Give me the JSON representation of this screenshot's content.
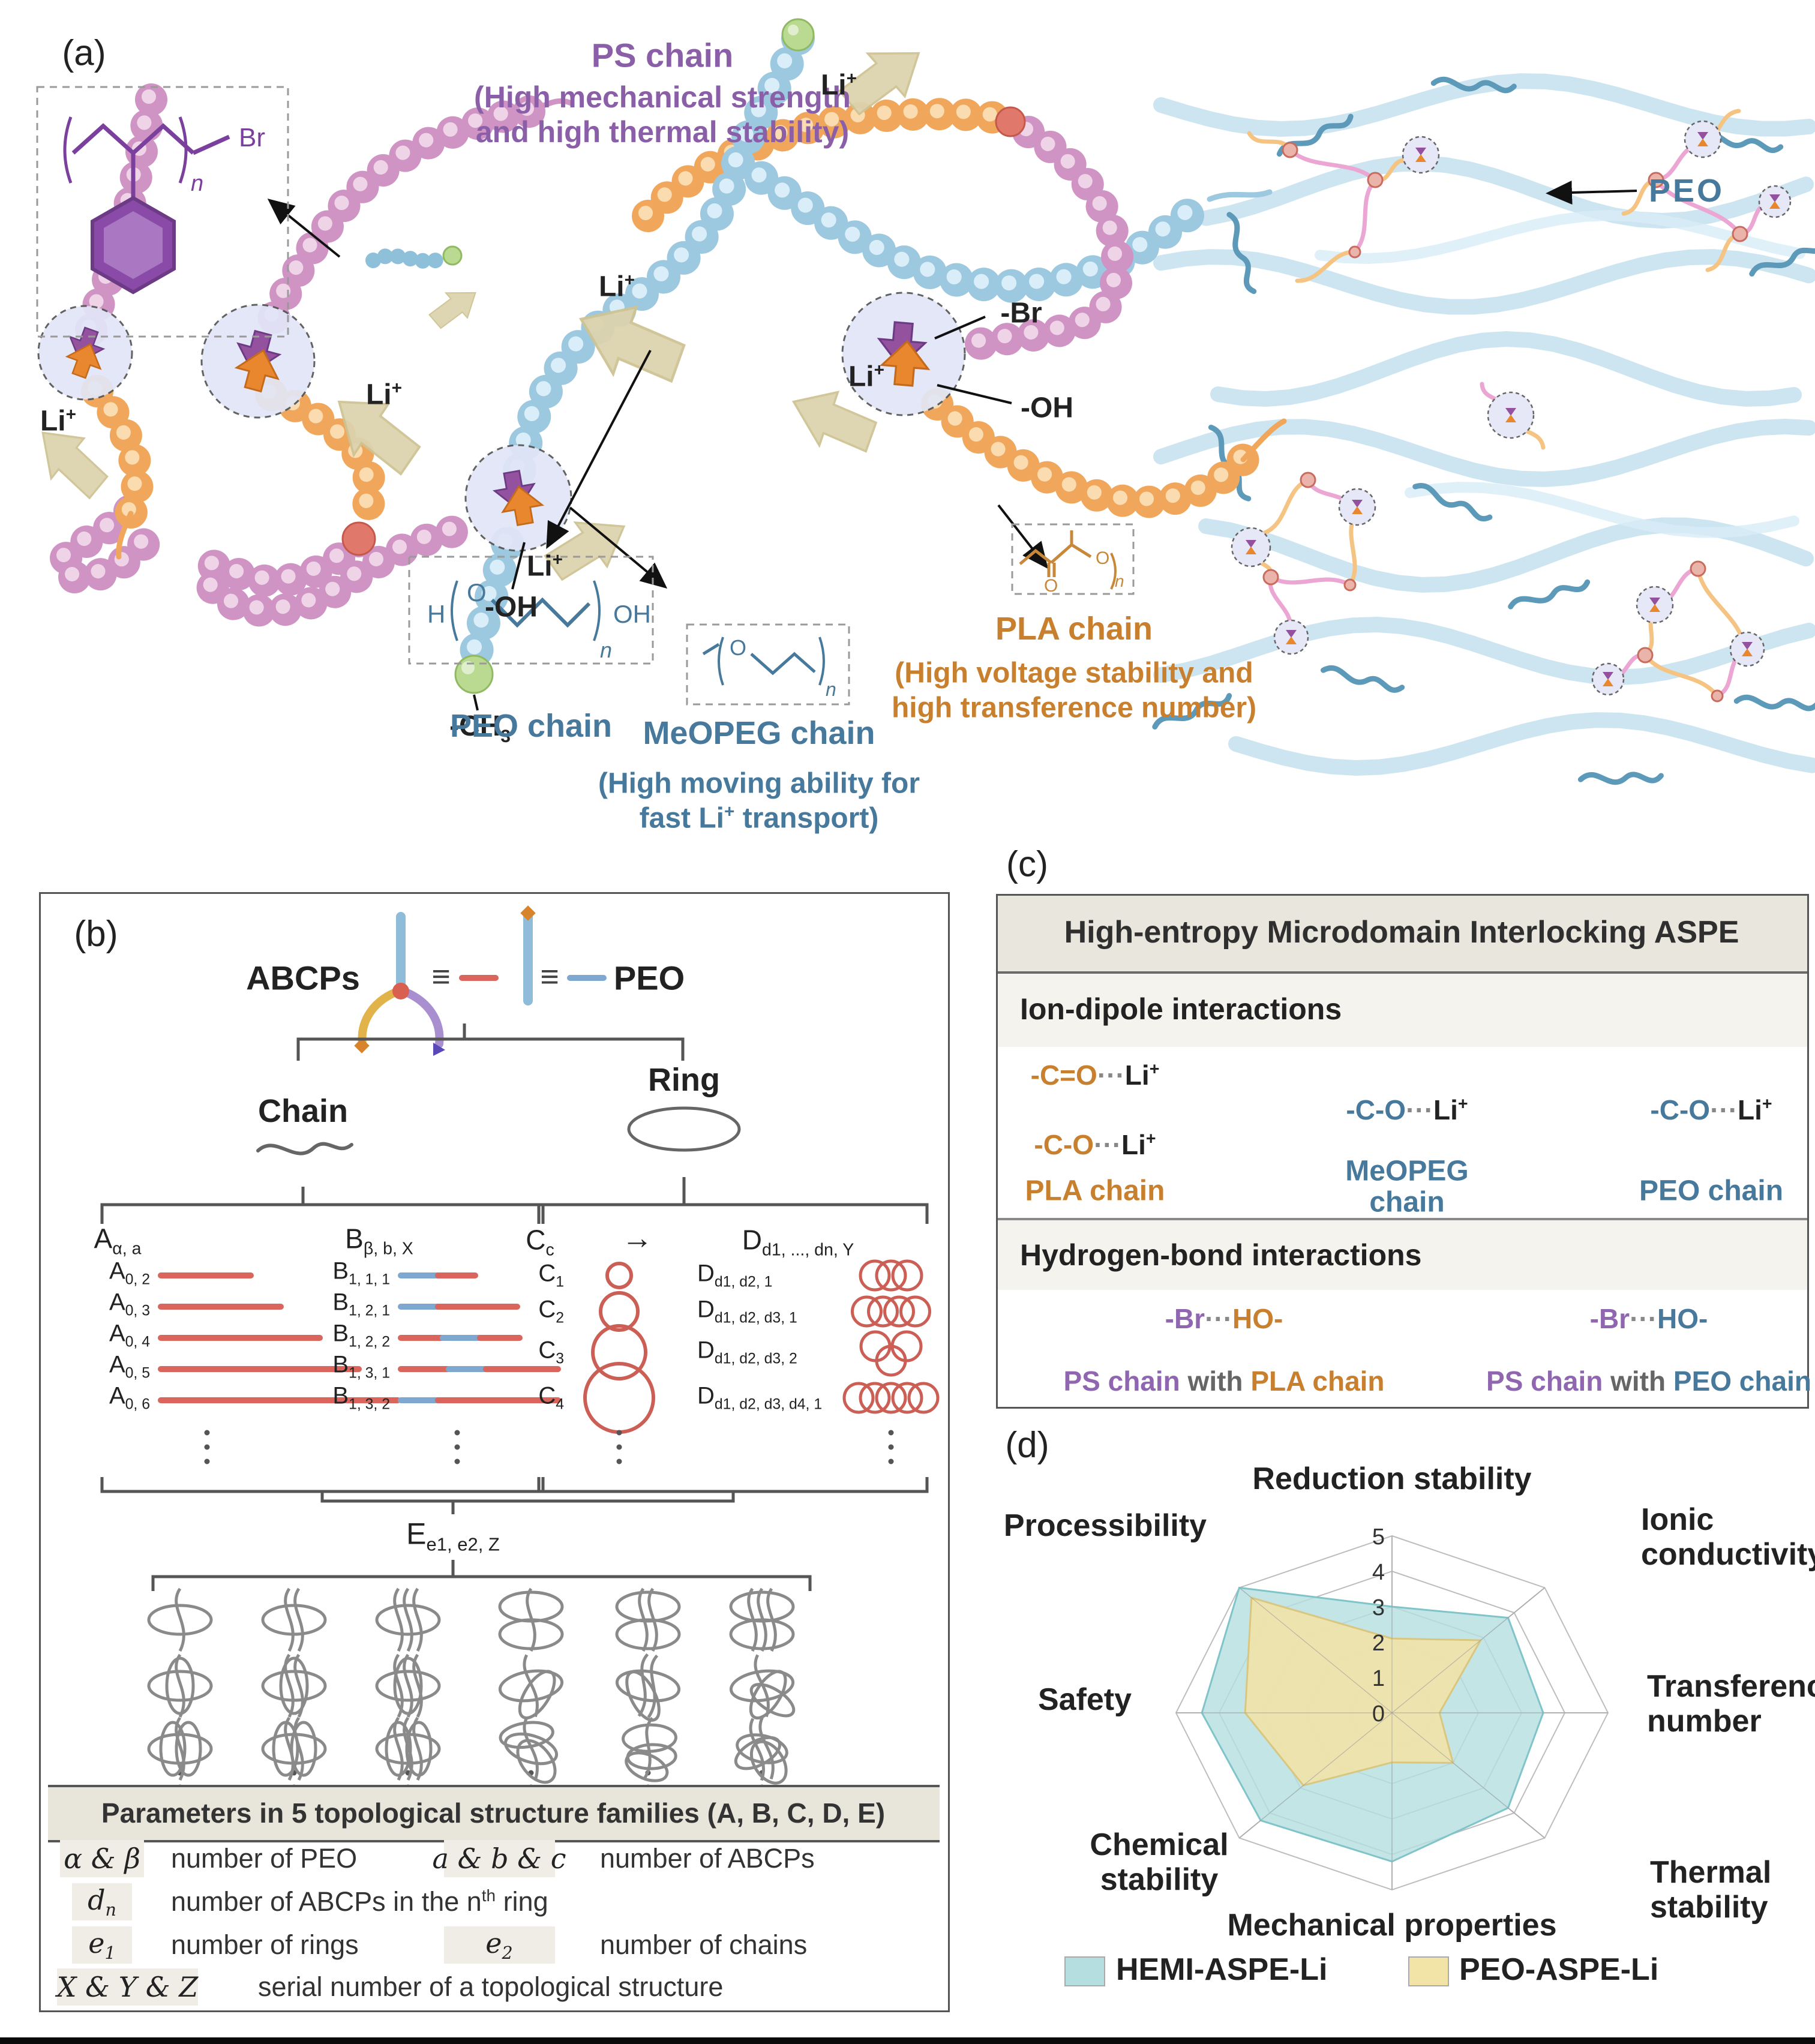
{
  "panel_a": {
    "label": "(a)",
    "ps": {
      "title": "PS chain",
      "line1": "(High mechanical strength",
      "line2": "and high thermal stability)",
      "color": "#8a5fa8",
      "formula": {
        "br": "Br",
        "n": "n"
      }
    },
    "peo": {
      "title": "PEO chain",
      "color": "#47799c",
      "formula": {
        "h": "H",
        "o": "O",
        "n": "n",
        "oh": "OH"
      }
    },
    "meopeg": {
      "title": "MeOPEG chain",
      "line1": "(High moving ability for",
      "line2": "fast Li^+ transport)",
      "color": "#47799c",
      "formula": {
        "o": "O",
        "n": "n"
      }
    },
    "pla": {
      "title": "PLA chain",
      "line1": "(High voltage stability and",
      "line2": "high transference number)",
      "color": "#c8802f",
      "formula": {
        "o1": "O",
        "o2": "O",
        "n": "n"
      }
    },
    "li_label": "Li^+",
    "br_label": "-Br",
    "oh_label": "-OH",
    "ch3_label": "-CH_3",
    "mesh_peo_label": "PEO"
  },
  "panel_b": {
    "label": "(b)",
    "abcps_label": "ABCPs",
    "equiv": "≡",
    "peo_label": "PEO",
    "chain_label": "Chain",
    "ring_label": "Ring",
    "arrow": "→",
    "family_a": {
      "header": "A_(α, a)",
      "items": [
        {
          "label": "A_(0, 2)",
          "len": 150
        },
        {
          "label": "A_(0, 3)",
          "len": 200
        },
        {
          "label": "A_(0, 4)",
          "len": 265
        },
        {
          "label": "A_(0, 5)",
          "len": 330
        },
        {
          "label": "A_(0, 6)",
          "len": 395
        }
      ]
    },
    "family_b": {
      "header": "B_(β, b, X)",
      "items": [
        {
          "label": "B_(1, 1, 1)",
          "segments": [
            [
              "blue",
              62
            ],
            [
              "red",
              62
            ]
          ]
        },
        {
          "label": "B_(1, 2, 1)",
          "segments": [
            [
              "blue",
              62
            ],
            [
              "red",
              132
            ]
          ]
        },
        {
          "label": "B_(1, 2, 2)",
          "segments": [
            [
              "red",
              70
            ],
            [
              "blue",
              62
            ],
            [
              "red",
              66
            ]
          ]
        },
        {
          "label": "B_(1, 3, 1)",
          "segments": [
            [
              "red",
              80
            ],
            [
              "blue",
              62
            ],
            [
              "red",
              120
            ]
          ]
        },
        {
          "label": "B_(1, 3, 2)",
          "segments": [
            [
              "blue",
              62
            ],
            [
              "red",
              200
            ]
          ]
        }
      ]
    },
    "family_c": {
      "header": "C_(c)",
      "items": [
        {
          "label": "C_(1)",
          "r": 20
        },
        {
          "label": "C_(2)",
          "r": 31
        },
        {
          "label": "C_(3)",
          "r": 44
        },
        {
          "label": "C_(4)",
          "r": 57
        }
      ]
    },
    "family_d": {
      "header": "D_(d1, ..., dn, Y)",
      "items": [
        {
          "label": "D_(d1, d2, 1)",
          "rings": 3,
          "arrange": "row"
        },
        {
          "label": "D_(d1, d2, d3, 1)",
          "rings": 4,
          "arrange": "row"
        },
        {
          "label": "D_(d1, d2, d3, 2)",
          "rings": 3,
          "arrange": "tri"
        },
        {
          "label": "D_(d1, d2, d3, d4, 1)",
          "rings": 5,
          "arrange": "row"
        }
      ]
    },
    "family_e": {
      "header": "E_(e1, e2, Z)"
    },
    "params_table": {
      "title": "Parameters in 5 topological structure families (A, B, C, D, E)",
      "rows": [
        {
          "key1": "α & β",
          "desc1": "number of PEO",
          "key2": "a & b & c",
          "desc2": "number of ABCPs"
        },
        {
          "key1": "d_n",
          "desc1": "number of ABCPs in the n^(th) ring",
          "key2": "",
          "desc2": ""
        },
        {
          "key1": "e_1",
          "desc1": "number of rings",
          "key2": "e_2",
          "desc2": "number of chains"
        },
        {
          "key1": "X & Y & Z",
          "desc1": "serial number of a topological structure",
          "key2": "",
          "desc2": ""
        }
      ]
    }
  },
  "panel_c": {
    "label": "(c)",
    "title": "High-entropy Microdomain Interlocking ASPE",
    "ion_dipole": {
      "header": "Ion-dipole interactions",
      "cols": [
        {
          "formulas": [
            {
              "g": "-C=O",
              "li": "Li^+"
            },
            {
              "g": "-C-O",
              "li": "Li^+"
            }
          ],
          "color": "#c8802f",
          "chain_lines": [
            "PLA chain"
          ],
          "chain_color": "#c8802f"
        },
        {
          "formulas": [
            {
              "g": "-C-O",
              "li": "Li^+"
            }
          ],
          "color": "#47799c",
          "chain_lines": [
            "MeOPEG",
            "chain"
          ],
          "chain_color": "#47799c"
        },
        {
          "formulas": [
            {
              "g": "-C-O",
              "li": "Li^+"
            }
          ],
          "color": "#47799c",
          "chain_lines": [
            "PEO chain"
          ],
          "chain_color": "#47799c"
        }
      ]
    },
    "h_bond": {
      "header": "Hydrogen-bond interactions",
      "cols": [
        {
          "br": "-Br",
          "dots": "···",
          "ho": "HO-",
          "br_color": "#9066b0",
          "ho_color": "#c8802f",
          "parts": [
            {
              "t": "PS chain",
              "c": "#9066b0"
            },
            {
              "t": " with ",
              "c": "#666666"
            },
            {
              "t": "PLA chain",
              "c": "#c8802f"
            }
          ]
        },
        {
          "br": "-Br",
          "dots": "···",
          "ho": "HO-",
          "br_color": "#9066b0",
          "ho_color": "#47799c",
          "parts": [
            {
              "t": "PS chain",
              "c": "#9066b0"
            },
            {
              "t": " with ",
              "c": "#666666"
            },
            {
              "t": "PEO chain",
              "c": "#47799c"
            }
          ]
        }
      ]
    }
  },
  "panel_d": {
    "label": "(d)",
    "chart_data": {
      "type": "radar",
      "axes": [
        "Reduction stability",
        "Ionic conductivity",
        "Transference number",
        "Thermal stability",
        "Mechanical properties",
        "Chemical stability",
        "Safety",
        "Processibility"
      ],
      "rlim": [
        0,
        5
      ],
      "ticks": [
        "0",
        "1",
        "2",
        "3",
        "4",
        "5"
      ],
      "grid": true,
      "legend_position": "bottom",
      "series": [
        {
          "name": "HEMI-ASPE-Li",
          "fill": "#b4dee0",
          "stroke": "#7fc4c9",
          "values": [
            3.0,
            3.8,
            3.5,
            3.8,
            4.2,
            4.3,
            4.4,
            5.0
          ]
        },
        {
          "name": "PEO-ASPE-Li",
          "fill": "#f2e3a6",
          "stroke": "#d9c77f",
          "values": [
            2.1,
            2.9,
            1.1,
            2.0,
            1.4,
            2.9,
            3.4,
            4.6
          ]
        }
      ]
    }
  }
}
